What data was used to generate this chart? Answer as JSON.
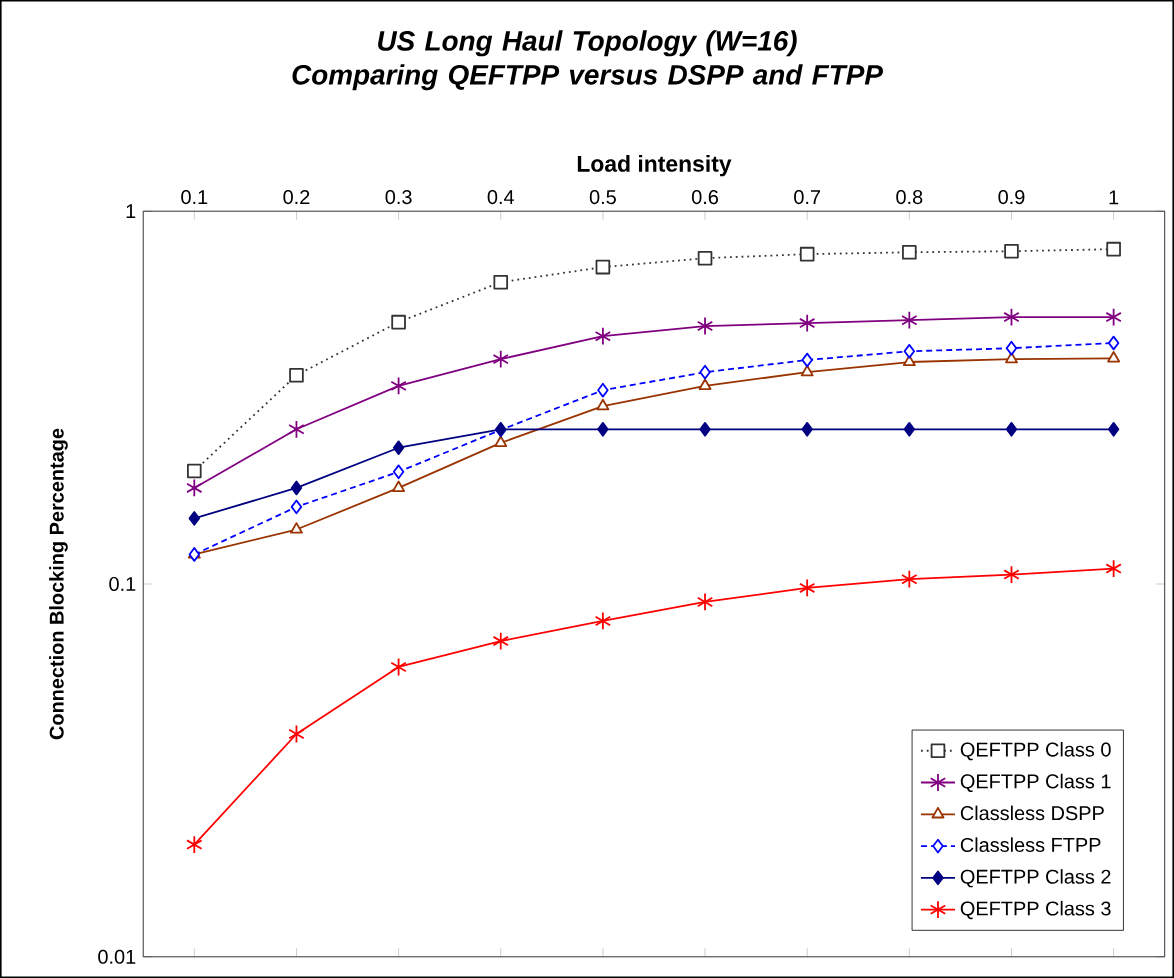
{
  "chart_data": {
    "type": "line",
    "title": "US Long Haul Topology (W=16)\nComparing QEFTPP versus DSPP and FTPP",
    "xlabel": "Load intensity",
    "ylabel": "Connection Blocking Percentage",
    "categories": [
      "0.1",
      "0.2",
      "0.3",
      "0.4",
      "0.5",
      "0.6",
      "0.7",
      "0.8",
      "0.9",
      "1"
    ],
    "log": "y",
    "ylim": [
      0.01,
      1
    ],
    "yticks": [
      0.01,
      0.1,
      1
    ],
    "legend": "bottom right",
    "series": [
      {
        "name": "QEFTPP Class 0",
        "color": "#333333",
        "marker": "square",
        "line_style": "dotted",
        "values": [
          0.201,
          0.363,
          0.504,
          0.645,
          0.708,
          0.748,
          0.767,
          0.776,
          0.781,
          0.791
        ]
      },
      {
        "name": "QEFTPP Class 1",
        "color": "#800080",
        "marker": "cross",
        "line_style": "solid",
        "values": [
          0.181,
          0.26,
          0.34,
          0.401,
          0.462,
          0.492,
          0.501,
          0.51,
          0.52,
          0.52
        ]
      },
      {
        "name": "Classless DSPP",
        "color": "#993300",
        "marker": "triangle",
        "line_style": "solid",
        "values": [
          0.12,
          0.14,
          0.181,
          0.239,
          0.3,
          0.34,
          0.37,
          0.394,
          0.401,
          0.403
        ]
      },
      {
        "name": "Classless FTPP",
        "color": "#0000ff",
        "marker": "diamond",
        "line_style": "dashed",
        "values": [
          0.12,
          0.161,
          0.2,
          0.259,
          0.331,
          0.37,
          0.399,
          0.421,
          0.429,
          0.443
        ]
      },
      {
        "name": "QEFTPP Class 2",
        "color": "#000080",
        "marker": "diamond",
        "line_style": "solid",
        "values": [
          0.15,
          0.181,
          0.232,
          0.26,
          0.26,
          0.26,
          0.26,
          0.26,
          0.26,
          0.26
        ]
      },
      {
        "name": "QEFTPP Class 3",
        "color": "#ff0000",
        "marker": "cross",
        "line_style": "solid",
        "values": [
          0.02,
          0.0396,
          0.0599,
          0.0703,
          0.0796,
          0.0895,
          0.0976,
          0.103,
          0.106,
          0.11
        ]
      }
    ]
  }
}
